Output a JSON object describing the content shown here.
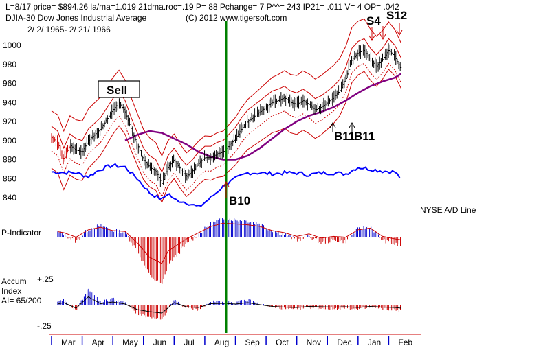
{
  "header": {
    "line1": "L=8/17  price= $894.26  la/ma=1.019 21dma.roc=.19 P=  88 Pchange=  7 P^^= 243 IP21= .011 V= 4 OP= .042",
    "line2_left": "DJIA-30  Dow Jones Industrial Average",
    "line2_right": "(C) 2012 www.tigersoft.com",
    "line3": "2/ 2/ 1965-  2/ 21/ 1966"
  },
  "labels": {
    "sell": "Sell",
    "b10": "B10",
    "b11a": "B11",
    "b11b": "B11",
    "s4": "S4",
    "s_extra": "S12",
    "ad_line": "NYSE A/D Line",
    "pind": "P-Indicator",
    "accum1": "Accum",
    "accum2": "Index",
    "accum3": "AI= 65/200",
    "ai_top": "+.25",
    "ai_bot": "-.25"
  },
  "colors": {
    "price": "#000000",
    "bands": "#cc0000",
    "ma": "#800080",
    "adline": "#0000ff",
    "signal": "#008000",
    "pos": "#0000cc",
    "neg": "#cc0000"
  },
  "chart_data": {
    "type": "line",
    "title": "DJIA-30 Dow Jones Industrial Average",
    "date_range": "2/ 2/ 1965- 2/ 21/ 1966",
    "y_ticks": [
      1000,
      980,
      960,
      940,
      920,
      900,
      880,
      860,
      840
    ],
    "ylim": [
      822,
      1012
    ],
    "x_months": [
      "Mar",
      "Apr",
      "May",
      "Jun",
      "Jul",
      "Aug",
      "Sep",
      "Oct",
      "Nov",
      "Dec",
      "Jan",
      "Feb"
    ],
    "price": [
      [
        0,
        903
      ],
      [
        0.5,
        898
      ],
      [
        1,
        880
      ],
      [
        1.5,
        895
      ],
      [
        2,
        890
      ],
      [
        2.5,
        888
      ],
      [
        3,
        900
      ],
      [
        3.5,
        906
      ],
      [
        4,
        912
      ],
      [
        4.5,
        922
      ],
      [
        5,
        932
      ],
      [
        5.5,
        940
      ],
      [
        6,
        930
      ],
      [
        6.5,
        912
      ],
      [
        7,
        896
      ],
      [
        7.5,
        880
      ],
      [
        8,
        872
      ],
      [
        8.5,
        868
      ],
      [
        9,
        855
      ],
      [
        9.5,
        872
      ],
      [
        10,
        880
      ],
      [
        10.5,
        870
      ],
      [
        11,
        862
      ],
      [
        11.5,
        868
      ],
      [
        12,
        876
      ],
      [
        12.5,
        882
      ],
      [
        13,
        882
      ],
      [
        13.5,
        886
      ],
      [
        14,
        888
      ],
      [
        14.5,
        895
      ],
      [
        15,
        902
      ],
      [
        15.5,
        912
      ],
      [
        16,
        920
      ],
      [
        16.5,
        925
      ],
      [
        17,
        930
      ],
      [
        17.5,
        935
      ],
      [
        18,
        940
      ],
      [
        18.5,
        942
      ],
      [
        19,
        945
      ],
      [
        19.5,
        940
      ],
      [
        20,
        938
      ],
      [
        20.5,
        942
      ],
      [
        21,
        938
      ],
      [
        21.5,
        932
      ],
      [
        22,
        935
      ],
      [
        22.5,
        940
      ],
      [
        23,
        945
      ],
      [
        23.5,
        952
      ],
      [
        24,
        965
      ],
      [
        24.5,
        985
      ],
      [
        25,
        992
      ],
      [
        25.5,
        995
      ],
      [
        26,
        985
      ],
      [
        26.5,
        978
      ],
      [
        27,
        985
      ],
      [
        27.5,
        995
      ],
      [
        28,
        988
      ],
      [
        28.5,
        975
      ]
    ],
    "ma": [
      [
        6,
        900
      ],
      [
        7,
        906
      ],
      [
        8,
        910
      ],
      [
        9,
        908
      ],
      [
        10,
        902
      ],
      [
        11,
        896
      ],
      [
        12,
        888
      ],
      [
        13,
        883
      ],
      [
        14,
        880
      ],
      [
        15,
        880
      ],
      [
        16,
        884
      ],
      [
        17,
        892
      ],
      [
        18,
        902
      ],
      [
        19,
        912
      ],
      [
        20,
        920
      ],
      [
        21,
        926
      ],
      [
        22,
        930
      ],
      [
        23,
        935
      ],
      [
        24,
        942
      ],
      [
        25,
        950
      ],
      [
        26,
        957
      ],
      [
        27,
        962
      ],
      [
        28,
        966
      ],
      [
        28.5,
        970
      ]
    ],
    "signals": [
      {
        "name": "Sell",
        "x": 6.5,
        "price": 940
      },
      {
        "name": "B10",
        "x": 13.5,
        "price": 858
      },
      {
        "name": "B11",
        "x": 22,
        "price": 920
      },
      {
        "name": "B11",
        "x": 23.5,
        "price": 920
      },
      {
        "name": "S4",
        "x": 25.5,
        "price": 1010
      }
    ]
  }
}
